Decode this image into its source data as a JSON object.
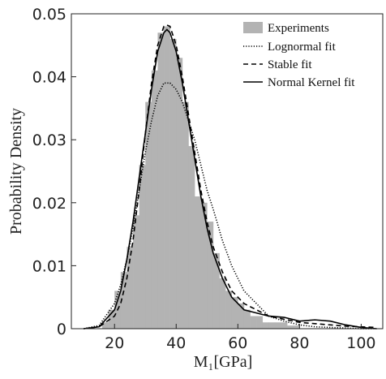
{
  "chart_data": {
    "type": "histogram",
    "xlabel": "M₁[GPa]",
    "ylabel": "Probability Density",
    "bins": [
      16,
      18,
      20,
      22,
      24,
      26,
      28,
      30,
      32,
      34,
      36,
      38,
      40,
      42,
      44,
      46,
      48,
      50,
      52,
      54,
      56,
      58,
      60,
      62,
      64,
      66,
      68,
      70,
      72,
      74,
      76,
      78,
      80
    ],
    "values": [
      0.001,
      0.003,
      0.006,
      0.009,
      0.013,
      0.018,
      0.026,
      0.036,
      0.041,
      0.047,
      0.048,
      0.046,
      0.043,
      0.036,
      0.029,
      0.021,
      0.02,
      0.017,
      0.012,
      0.008,
      0.006,
      0.005,
      0.004,
      0.003,
      0.002,
      0.002,
      0.001,
      0.001,
      0.001,
      0.001,
      0.0005,
      0.0005
    ],
    "name": "Experiments",
    "color": "#b3b3b3",
    "x": [
      10,
      15,
      20,
      22,
      24,
      26,
      28,
      30,
      32,
      34,
      36,
      37,
      38,
      40,
      42,
      44,
      46,
      48,
      50,
      52,
      55,
      58,
      62,
      66,
      70,
      75,
      80,
      85,
      90,
      95,
      100,
      105
    ],
    "series": [
      {
        "name": "Lognormal fit",
        "color": "#000000",
        "dash": "1.2,2",
        "values": [
          0,
          0.0005,
          0.004,
          0.007,
          0.011,
          0.016,
          0.022,
          0.028,
          0.033,
          0.037,
          0.039,
          0.039,
          0.039,
          0.038,
          0.036,
          0.033,
          0.03,
          0.026,
          0.022,
          0.019,
          0.014,
          0.01,
          0.006,
          0.004,
          0.002,
          0.0012,
          0.0006,
          0.0003,
          0.0002,
          0.0001,
          0,
          0
        ]
      },
      {
        "name": "Stable fit",
        "color": "#000000",
        "dash": "6,4",
        "values": [
          0,
          0.0003,
          0.002,
          0.004,
          0.008,
          0.014,
          0.022,
          0.031,
          0.039,
          0.045,
          0.048,
          0.0482,
          0.048,
          0.045,
          0.04,
          0.034,
          0.028,
          0.022,
          0.017,
          0.013,
          0.009,
          0.006,
          0.004,
          0.003,
          0.002,
          0.0015,
          0.001,
          0.0008,
          0.0006,
          0.0004,
          0.0003,
          0.0002
        ]
      },
      {
        "name": "Normal Kernel fit",
        "color": "#000000",
        "dash": "none",
        "values": [
          0,
          0.0003,
          0.003,
          0.006,
          0.011,
          0.017,
          0.024,
          0.031,
          0.038,
          0.044,
          0.047,
          0.0475,
          0.047,
          0.044,
          0.039,
          0.033,
          0.027,
          0.021,
          0.016,
          0.012,
          0.008,
          0.005,
          0.003,
          0.0025,
          0.002,
          0.0018,
          0.0012,
          0.0014,
          0.0012,
          0.0006,
          0.0002,
          0
        ]
      }
    ],
    "xlim": [
      6,
      107
    ],
    "ylim": [
      0,
      0.05
    ],
    "xticks": [
      20,
      40,
      60,
      80,
      100
    ],
    "yticks": [
      0,
      0.01,
      0.02,
      0.03,
      0.04,
      0.05
    ]
  }
}
